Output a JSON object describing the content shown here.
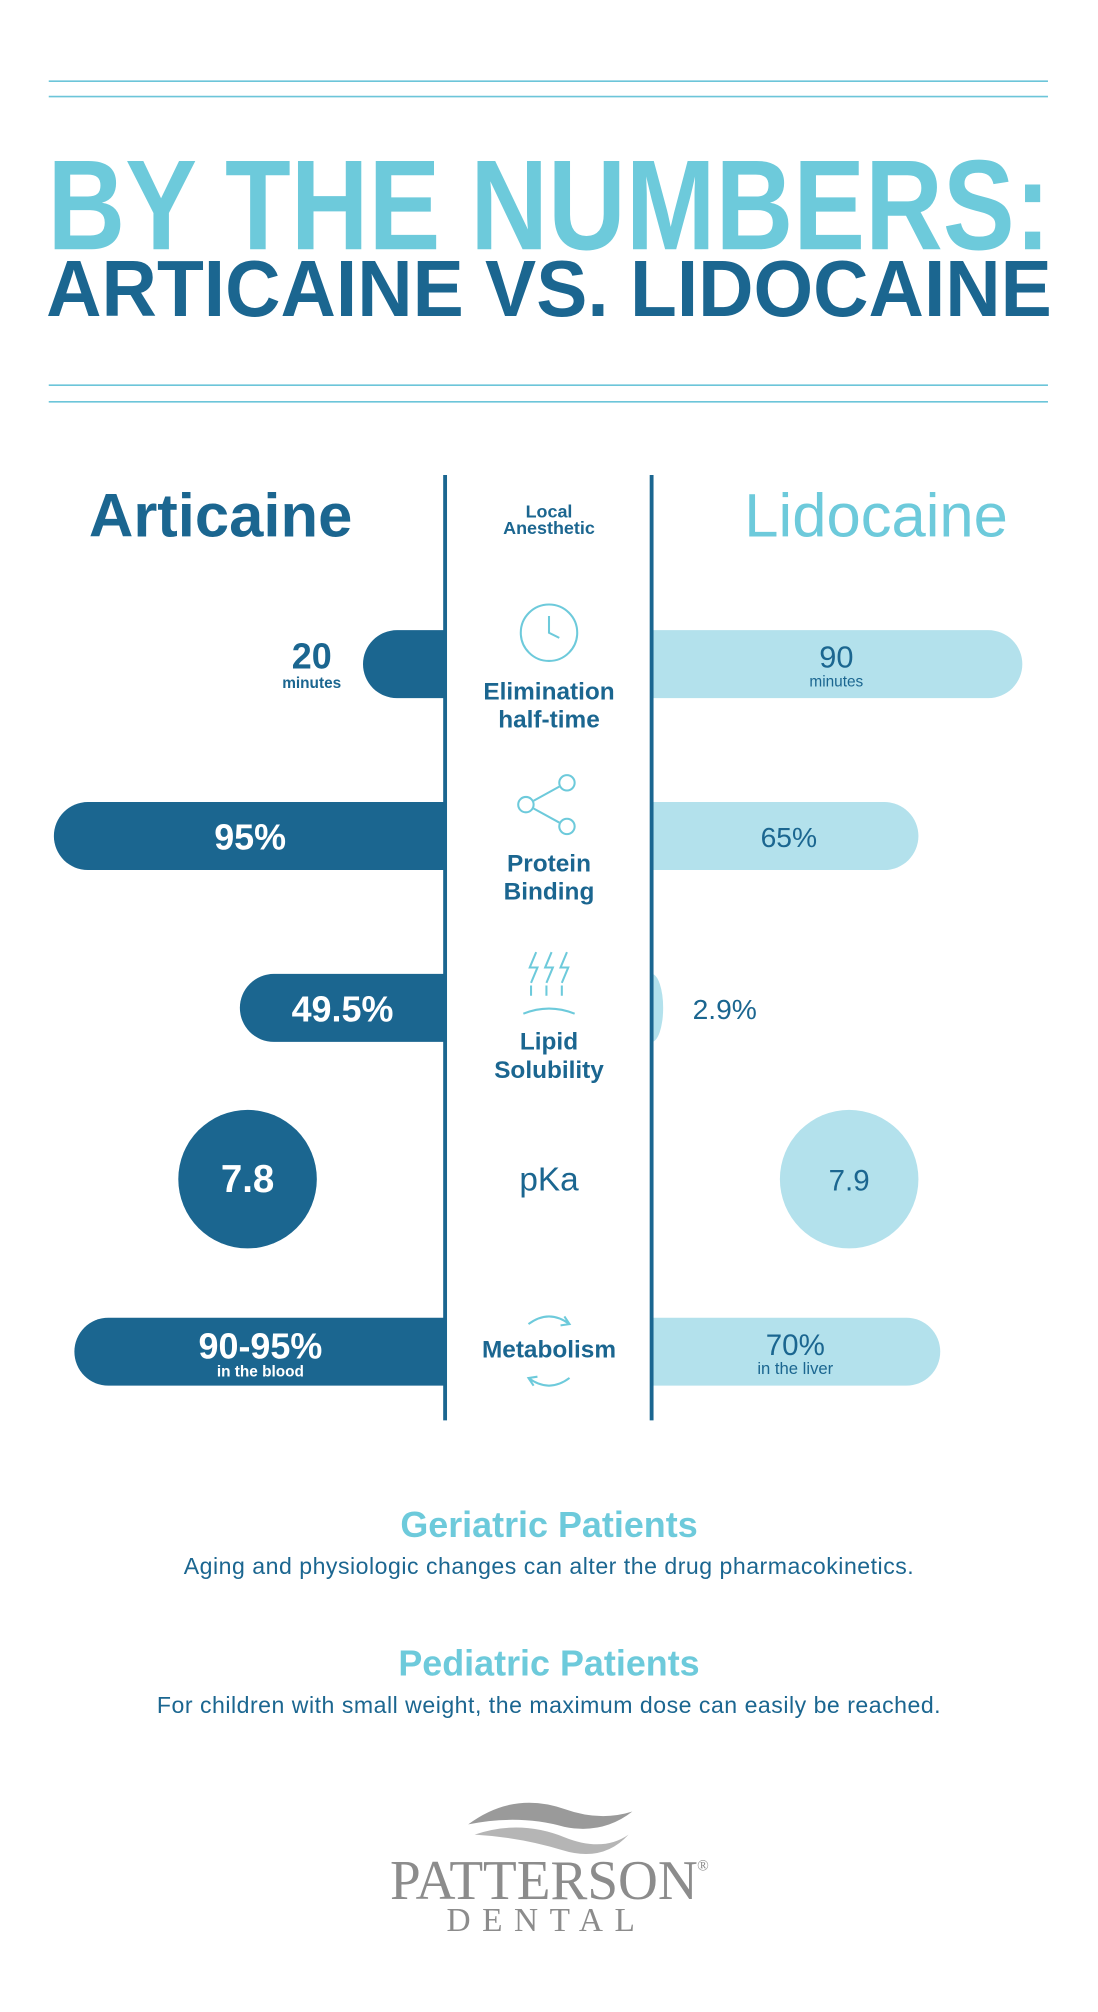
{
  "header": {
    "title": "BY THE NUMBERS:",
    "subtitle": "ARTICAINE VS. LIDOCAINE"
  },
  "columns": {
    "left": "Articaine",
    "center": [
      "Local",
      "Anesthetic"
    ],
    "right": "Lidocaine"
  },
  "rows": [
    {
      "label": [
        "Elimination",
        "half-time"
      ],
      "articaine": {
        "value": "20",
        "note": "minutes"
      },
      "lidocaine": {
        "value": "90",
        "note": "minutes"
      }
    },
    {
      "label": [
        "Protein",
        "Binding"
      ],
      "articaine": {
        "value": "95%"
      },
      "lidocaine": {
        "value": "65%"
      }
    },
    {
      "label": [
        "Lipid",
        "Solubility"
      ],
      "articaine": {
        "value": "49.5%"
      },
      "lidocaine": {
        "value": "2.9%"
      }
    },
    {
      "label": [
        "pKa"
      ],
      "articaine": {
        "value": "7.8"
      },
      "lidocaine": {
        "value": "7.9"
      }
    },
    {
      "label": [
        "Metabolism"
      ],
      "articaine": {
        "value": "90-95%",
        "note": "in the blood"
      },
      "lidocaine": {
        "value": "70%",
        "note": "in the liver"
      }
    }
  ],
  "notes": [
    {
      "title": "Geriatric Patients",
      "text": "Aging and physiologic changes can alter the drug pharmacokinetics."
    },
    {
      "title": "Pediatric Patients",
      "text": "For children with small weight, the maximum dose can easily be reached."
    }
  ],
  "logo": {
    "name": "PATTERSON",
    "mark": "®",
    "sub": "DENTAL"
  }
}
